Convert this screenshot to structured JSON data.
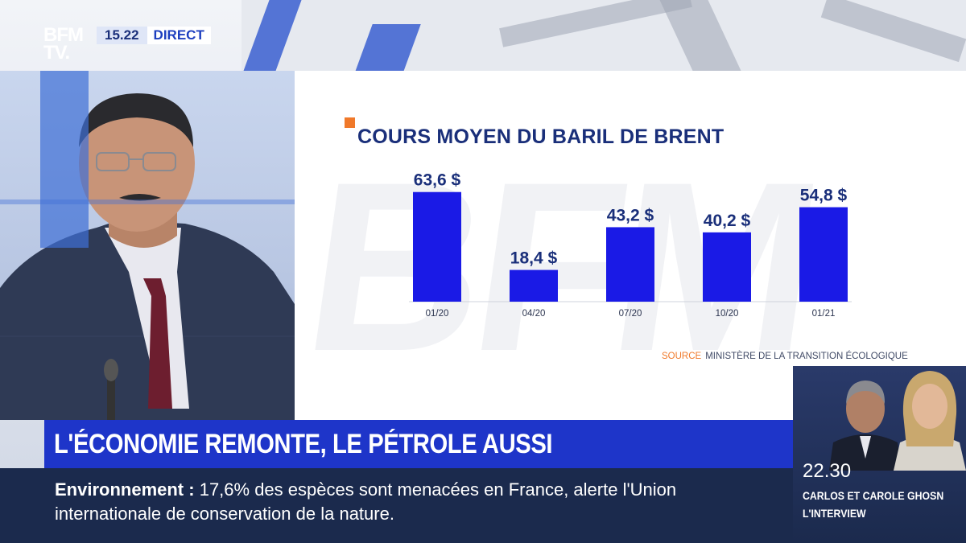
{
  "channel": {
    "logo_line1": "BFM",
    "logo_line2": "TV.",
    "time": "15.22",
    "live_label": "DIRECT"
  },
  "chart_data": {
    "type": "bar",
    "title": "COURS MOYEN DU BARIL DE BRENT",
    "categories": [
      "01/20",
      "04/20",
      "07/20",
      "10/20",
      "01/21"
    ],
    "values": [
      63.6,
      18.4,
      43.2,
      40.2,
      54.8
    ],
    "value_labels": [
      "63,6 $",
      "18,4 $",
      "43,2 $",
      "40,2 $",
      "54,8 $"
    ],
    "ylim": [
      0,
      70
    ],
    "bar_color": "#1a1ae6",
    "source_label": "SOURCE",
    "source_text": "MINISTÈRE DE LA TRANSITION ÉCOLOGIQUE"
  },
  "banner": {
    "headline": "L'ÉCONOMIE REMONTE, LE PÉTROLE AUSSI",
    "ticker_label": "Environnement :",
    "ticker_text": "17,6% des espèces sont menacées en France, alerte l'Union internationale de conservation de la nature."
  },
  "promo": {
    "time": "22.30",
    "title": "CARLOS ET CAROLE GHOSN",
    "subtitle": "L'INTERVIEW"
  },
  "colors": {
    "accent_orange": "#f0792a",
    "navy": "#1b2a4d",
    "banner_blue": "#1e35c9",
    "title_blue": "#1a2f7a"
  }
}
